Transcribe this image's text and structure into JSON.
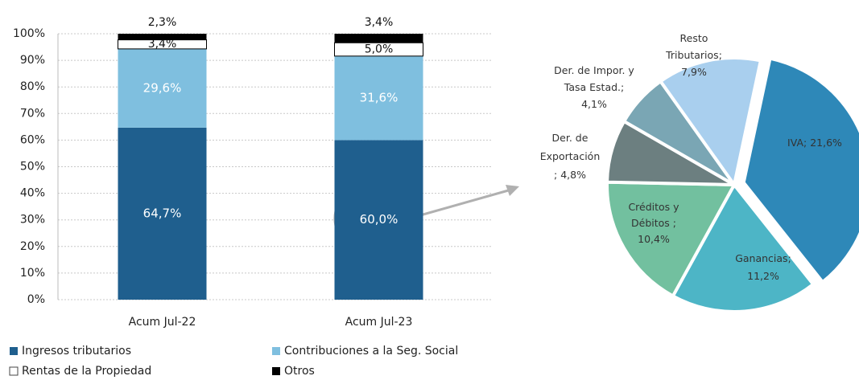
{
  "chart_data": [
    {
      "type": "stacked-bar",
      "categories": [
        "Acum Jul-22",
        "Acum Jul-23"
      ],
      "series": [
        {
          "name": "Ingresos tributarios",
          "color": "#1f5f8e",
          "values": [
            64.7,
            60.0
          ],
          "value_labels": [
            "64,7%",
            "60,0%"
          ]
        },
        {
          "name": "Contribuciones a la Seg. Social",
          "color": "#7fbfdf",
          "values": [
            29.6,
            31.6
          ],
          "value_labels": [
            "29,6%",
            "31,6%"
          ]
        },
        {
          "name": "Rentas de la Propiedad",
          "color": "#ffffff",
          "values": [
            3.4,
            5.0
          ],
          "value_labels": [
            "3,4%",
            "5,0%"
          ]
        },
        {
          "name": "Otros",
          "color": "#000000",
          "values": [
            2.3,
            3.4
          ],
          "value_labels": [
            "2,3%",
            "3,4%"
          ]
        }
      ],
      "ylim": [
        0,
        100
      ],
      "yticks": [
        {
          "value": 0,
          "label": "0%"
        },
        {
          "value": 10,
          "label": "10%"
        },
        {
          "value": 20,
          "label": "20%"
        },
        {
          "value": 30,
          "label": "30%"
        },
        {
          "value": 40,
          "label": "40%"
        },
        {
          "value": 50,
          "label": "50%"
        },
        {
          "value": 60,
          "label": "60%"
        },
        {
          "value": 70,
          "label": "70%"
        },
        {
          "value": 80,
          "label": "80%"
        },
        {
          "value": 90,
          "label": "90%"
        },
        {
          "value": 100,
          "label": "100%"
        }
      ],
      "grid": true
    },
    {
      "type": "pie",
      "values": [
        21.6,
        11.2,
        10.4,
        4.8,
        4.1,
        7.9
      ],
      "value_labels": [
        [
          "IVA; 21,6%"
        ],
        [
          "Ganancias;",
          "11,2%"
        ],
        [
          "Créditos y",
          "Débitos ;",
          "10,4%"
        ],
        [
          "Der. de",
          "Exportación",
          "; 4,8%"
        ],
        [
          "Der. de Impor. y",
          "Tasa Estad.;",
          "4,1%"
        ],
        [
          "Resto",
          "Tributarios;",
          "7,9%"
        ]
      ],
      "colors": [
        "#2e88b8",
        "#4db5c6",
        "#72c09f",
        "#6c7f80",
        "#7aa6b4",
        "#a9cfee"
      ],
      "exploded": [
        true,
        false,
        false,
        false,
        false,
        false
      ]
    }
  ]
}
